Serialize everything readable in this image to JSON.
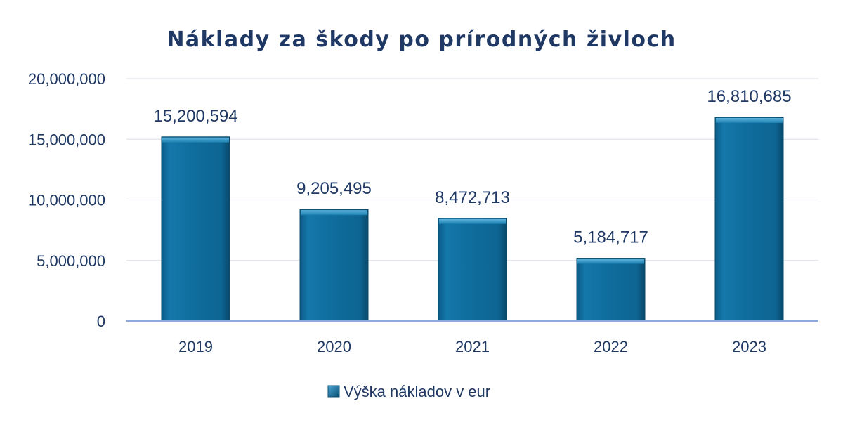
{
  "chart_data": {
    "type": "bar",
    "title": "Náklady za škody po prírodných živloch",
    "categories": [
      "2019",
      "2020",
      "2021",
      "2022",
      "2023"
    ],
    "series": [
      {
        "name": "Výška nákladov v eur",
        "values": [
          15200594,
          9205495,
          8472713,
          5184717,
          16810685
        ],
        "labels": [
          "15,200,594",
          "9,205,495",
          "8,472,713",
          "5,184,717",
          "16,810,685"
        ]
      }
    ],
    "ylim": [
      0,
      20000000
    ],
    "yticks": [
      0,
      5000000,
      10000000,
      15000000,
      20000000
    ],
    "ytick_labels": [
      "0",
      "5,000,000",
      "10,000,000",
      "15,000,000",
      "20,000,000"
    ],
    "xlabel": "",
    "ylabel": "",
    "grid": true,
    "legend_position": "bottom",
    "colors": {
      "bar": "#0e6a9a",
      "bar_light": "#3d9cc8",
      "bar_dark": "#0a4f73",
      "text": "#1f3864"
    }
  }
}
